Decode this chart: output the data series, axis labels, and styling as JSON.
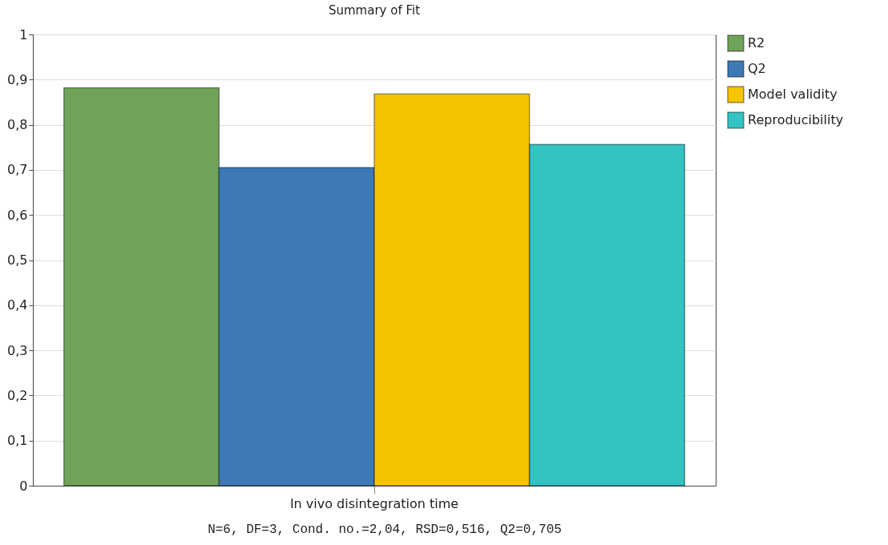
{
  "chart_data": {
    "type": "bar",
    "title": "Summary of Fit",
    "categories": [
      "In vivo disintegration time"
    ],
    "series": [
      {
        "name": "R2",
        "color": "#70a35a",
        "values": [
          0.882
        ]
      },
      {
        "name": "Q2",
        "color": "#3d7ab5",
        "values": [
          0.705
        ]
      },
      {
        "name": "Model validity",
        "color": "#f5c400",
        "values": [
          0.868
        ]
      },
      {
        "name": "Reproducibility",
        "color": "#33c3c3",
        "values": [
          0.756
        ]
      }
    ],
    "ylim": [
      0,
      1
    ],
    "yticks": [
      0,
      {
        "value": 0.1,
        "label": "0,1"
      },
      {
        "value": 0.2,
        "label": "0,2"
      },
      {
        "value": 0.3,
        "label": "0,3"
      },
      {
        "value": 0.4,
        "label": "0,4"
      },
      {
        "value": 0.5,
        "label": "0,5"
      },
      {
        "value": 0.6,
        "label": "0,6"
      },
      {
        "value": 0.7,
        "label": "0,7"
      },
      {
        "value": 0.8,
        "label": "0,8"
      },
      {
        "value": 0.9,
        "label": "0,9"
      },
      1
    ],
    "grid": "y",
    "legend": "top right",
    "annotations": [
      "N=6, DF=3, Cond. no.=2,04, RSD=0,516, Q2=0,705"
    ]
  }
}
